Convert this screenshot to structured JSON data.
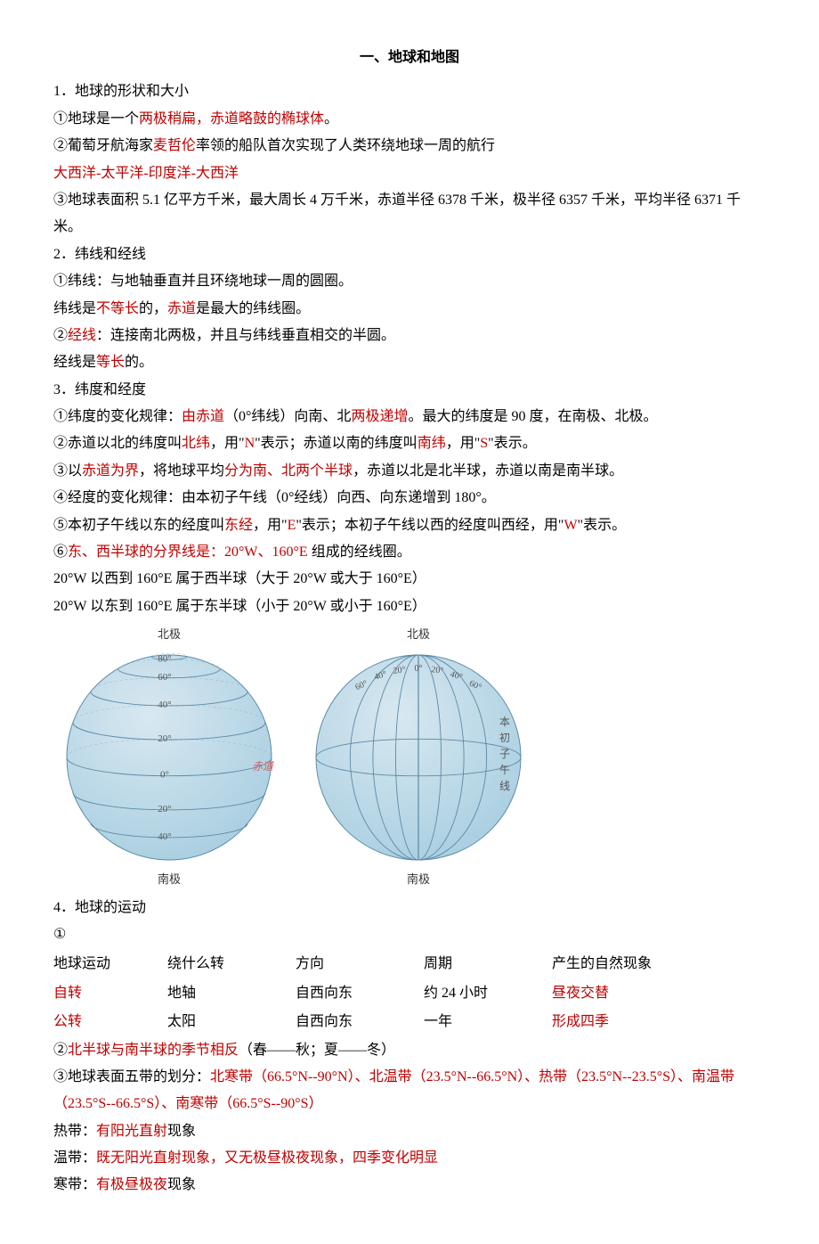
{
  "title": "一、地球和地图",
  "s1": {
    "h": "1．地球的形状和大小",
    "l1a": "①地球是一个",
    "l1b": "两极稍扁，赤道略鼓的椭球体",
    "l1c": "。",
    "l2a": "②葡萄牙航海家",
    "l2b": "麦哲伦",
    "l2c": "率领的船队首次实现了人类环绕地球一周的航行",
    "l3": "大西洋-太平洋-印度洋-大西洋",
    "l4": "③地球表面积 5.1 亿平方千米，最大周长 4 万千米，赤道半径 6378 千米，极半径 6357 千米，平均半径 6371 千米。"
  },
  "s2": {
    "h": "2．纬线和经线",
    "l1": "①纬线：与地轴垂直并且环绕地球一周的圆圈。",
    "l2a": "纬线是",
    "l2b": "不等长",
    "l2c": "的，",
    "l2d": "赤道",
    "l2e": "是最大的纬线圈。",
    "l3a": "②",
    "l3b": "经线",
    "l3c": "：连接南北两极，并且与纬线垂直相交的半圆。",
    "l4a": "经线是",
    "l4b": "等长",
    "l4c": "的。"
  },
  "s3": {
    "h": "3．纬度和经度",
    "l1a": "①纬度的变化规律：",
    "l1b": "由赤道",
    "l1c": "（0°纬线）向南、北",
    "l1d": "两极递增",
    "l1e": "。最大的纬度是 90 度，在南极、北极。",
    "l2a": "②赤道以北的纬度叫",
    "l2b": "北纬",
    "l2c": "，用\"",
    "l2d": "N",
    "l2e": "\"表示；赤道以南的纬度叫",
    "l2f": "南纬",
    "l2g": "，用\"",
    "l2h": "S",
    "l2i": "\"表示。",
    "l3a": "③以",
    "l3b": "赤道为界",
    "l3c": "，将地球平均",
    "l3d": "分为南、北两个半球",
    "l3e": "，赤道以北是北半球，赤道以南是南半球。",
    "l4": "④经度的变化规律：由本初子午线（0°经线）向西、向东递增到 180°。",
    "l5a": "⑤本初子午线以东的经度叫",
    "l5b": "东经",
    "l5c": "，用\"",
    "l5d": "E",
    "l5e": "\"表示；本初子午线以西的经度叫西经，用\"",
    "l5f": "W",
    "l5g": "\"表示。",
    "l6a": "⑥",
    "l6b": "东、西半球的分界线是：20°W、160°E",
    "l6c": " 组成的经线圈。",
    "l7": "20°W 以西到 160°E 属于西半球（大于 20°W 或大于 160°E）",
    "l8": "20°W 以东到 160°E 属于东半球（小于 20°W 或小于 160°E）"
  },
  "globes": {
    "left": {
      "top_label": "北极",
      "bottom_label": "南极",
      "equator_label": "赤道",
      "lat_labels": [
        "80°",
        "60°",
        "40°",
        "20°",
        "0°",
        "20°",
        "40°"
      ],
      "fill_top": "#d8e8f0",
      "fill_bottom": "#a6cde0",
      "line_color": "#5b8aa8",
      "label_color": "#555",
      "equator_color": "#d06060"
    },
    "right": {
      "top_label": "北极",
      "bottom_label": "南极",
      "meridian_label_chars": [
        "本",
        "初",
        "子",
        "午",
        "线"
      ],
      "lon_labels": [
        "60°",
        "40°",
        "20°",
        "0°",
        "20°",
        "40°",
        "60°"
      ],
      "fill_top": "#d8e8f0",
      "fill_bottom": "#a6cde0",
      "line_color": "#5b8aa8",
      "label_color": "#555"
    }
  },
  "s4": {
    "h": "4．地球的运动",
    "circled1": "①",
    "table": {
      "header": [
        "地球运动",
        "绕什么转",
        "方向",
        "周期",
        "产生的自然现象"
      ],
      "rows": [
        {
          "c1": "自转",
          "c1_red": true,
          "c2": "地轴",
          "c3": "自西向东",
          "c4": "约 24 小时",
          "c5": "昼夜交替",
          "c5_red": true
        },
        {
          "c1": "公转",
          "c1_red": true,
          "c2": "太阳",
          "c3": "自西向东",
          "c4": "一年",
          "c5": "形成四季",
          "c5_red": true
        }
      ]
    },
    "l2a": "②",
    "l2b": "北半球与南半球的季节相反",
    "l2c": "（春——秋；夏——冬）",
    "l3a": "③地球表面五带的划分：",
    "l3b": "北寒带（66.5°N--90°N）、北温带（23.5°N--66.5°N）、热带（23.5°N--23.5°S）、南温带（23.5°S--66.5°S）、南寒带（66.5°S--90°S）",
    "l4a": "热带：",
    "l4b": "有阳光直射",
    "l4c": "现象",
    "l5a": "温带：",
    "l5b": "既无阳光直射现象，又无极昼极夜现象，四季变化明显",
    "l6a": "寒带：",
    "l6b": "有极昼极夜",
    "l6c": "现象"
  }
}
